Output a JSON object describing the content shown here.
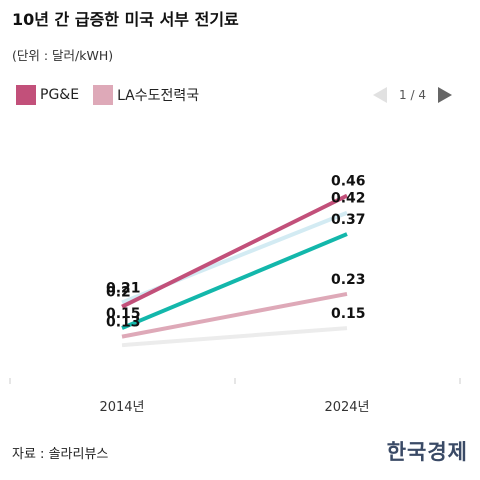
{
  "title": "10년 간 급증한 미국 서부 전기료",
  "subtitle": "(단위 : 달러/kWH)",
  "legend": [
    {
      "label": "PG&E",
      "color": "#c2507a"
    },
    {
      "label": "LA수도전력국",
      "color": "#dea9b8"
    }
  ],
  "pager": {
    "text": "1 / 4"
  },
  "source": "자료 : 솔라리뷰스",
  "logo": "한국경제",
  "chart_data": {
    "type": "line",
    "x": [
      "2014년",
      "2024년"
    ],
    "ylim": [
      0.08,
      0.52
    ],
    "series": [
      {
        "name": "PG&E",
        "color": "#c2507a",
        "values": [
          0.2,
          0.46
        ],
        "labels": [
          "0.2",
          "0.46"
        ]
      },
      {
        "color": "#d3ebf3",
        "values": [
          0.21,
          0.42
        ],
        "labels": [
          "0.21",
          "0.42"
        ]
      },
      {
        "color": "#13b7ab",
        "values": [
          0.15,
          0.37
        ],
        "labels": [
          "0.15",
          "0.37"
        ]
      },
      {
        "name": "LA수도전력국",
        "color": "#dea9b8",
        "values": [
          0.13,
          0.23
        ],
        "labels": [
          "0.13",
          "0.23"
        ]
      },
      {
        "color": "#ececec",
        "values": [
          0.11,
          0.15
        ],
        "labels": [
          "",
          "0.15"
        ]
      }
    ]
  }
}
